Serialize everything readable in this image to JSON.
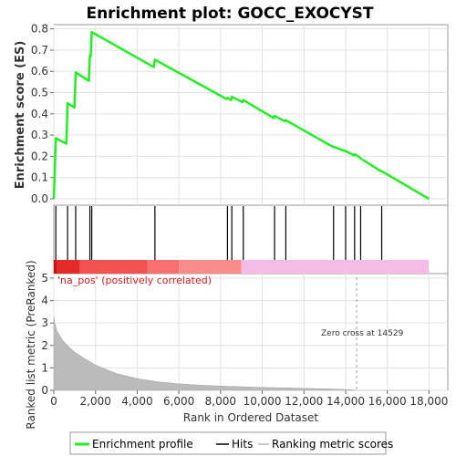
{
  "chart_data": {
    "type": "line",
    "title": "Enrichment plot: GOCC_EXOCYST",
    "xlabel": "Rank in Ordered Dataset",
    "ylabel_top": "Enrichment score (ES)",
    "ylabel_bottom": "Ranked list metric (PreRanked)",
    "xlim": [
      0,
      18900
    ],
    "x_ticks": [
      0,
      2000,
      4000,
      6000,
      8000,
      10000,
      12000,
      14000,
      16000,
      18000
    ],
    "x_tick_labels": [
      "0",
      "2,000",
      "4,000",
      "6,000",
      "8,000",
      "10,000",
      "12,000",
      "14,000",
      "16,000",
      "18,000"
    ],
    "es_ylim": [
      -0.03,
      0.82
    ],
    "es_ticks": [
      0.0,
      0.1,
      0.2,
      0.3,
      0.4,
      0.5,
      0.6,
      0.7,
      0.8
    ],
    "es_tick_labels": [
      "0.0",
      "0.1",
      "0.2",
      "0.3",
      "0.4",
      "0.5",
      "0.6",
      "0.7",
      "0.8"
    ],
    "metric_ylim": [
      0,
      5.2
    ],
    "metric_ticks": [
      0,
      1,
      2,
      3,
      4,
      5
    ],
    "metric_tick_labels": [
      "0",
      "1",
      "2",
      "3",
      "4",
      "5"
    ],
    "max_rank": 17990,
    "hits": [
      96,
      660,
      1050,
      1730,
      1820,
      4850,
      8330,
      8540,
      9090,
      10590,
      11130,
      13420,
      14000,
      14430,
      14720,
      15730
    ],
    "es_profile": [
      [
        0,
        0.0
      ],
      [
        96,
        0.285
      ],
      [
        600,
        0.26
      ],
      [
        660,
        0.45
      ],
      [
        990,
        0.43
      ],
      [
        1050,
        0.595
      ],
      [
        1680,
        0.555
      ],
      [
        1730,
        0.675
      ],
      [
        1770,
        0.67
      ],
      [
        1820,
        0.785
      ],
      [
        4800,
        0.62
      ],
      [
        4850,
        0.655
      ],
      [
        8280,
        0.47
      ],
      [
        8330,
        0.475
      ],
      [
        8500,
        0.465
      ],
      [
        8540,
        0.48
      ],
      [
        9050,
        0.455
      ],
      [
        9090,
        0.465
      ],
      [
        10550,
        0.38
      ],
      [
        10590,
        0.39
      ],
      [
        11090,
        0.365
      ],
      [
        11130,
        0.37
      ],
      [
        13380,
        0.245
      ],
      [
        13420,
        0.245
      ],
      [
        13960,
        0.225
      ],
      [
        14000,
        0.225
      ],
      [
        14390,
        0.205
      ],
      [
        14430,
        0.21
      ],
      [
        14680,
        0.195
      ],
      [
        14720,
        0.19
      ],
      [
        15690,
        0.13
      ],
      [
        15730,
        0.13
      ],
      [
        17990,
        0.0
      ]
    ],
    "metric_curve": [
      [
        0,
        3.3
      ],
      [
        40,
        3.0
      ],
      [
        150,
        2.65
      ],
      [
        400,
        2.25
      ],
      [
        700,
        1.95
      ],
      [
        1000,
        1.7
      ],
      [
        1500,
        1.4
      ],
      [
        2000,
        1.12
      ],
      [
        3000,
        0.75
      ],
      [
        4000,
        0.52
      ],
      [
        5000,
        0.38
      ],
      [
        6000,
        0.29
      ],
      [
        7000,
        0.23
      ],
      [
        8000,
        0.19
      ],
      [
        9000,
        0.16
      ],
      [
        10000,
        0.13
      ],
      [
        11000,
        0.11
      ],
      [
        12000,
        0.09
      ],
      [
        13000,
        0.07
      ],
      [
        14000,
        0.04
      ],
      [
        14529,
        0.0
      ],
      [
        17990,
        0.0
      ]
    ],
    "zero_cross": 14529,
    "zero_cross_label": "Zero cross at 14529",
    "pos_label": "'na_pos' (positively correlated)",
    "colorbar_segments": [
      {
        "start": 0,
        "end": 150,
        "color": "#d01010"
      },
      {
        "start": 150,
        "end": 1250,
        "color": "#e52a2a"
      },
      {
        "start": 1250,
        "end": 4500,
        "color": "#f25252"
      },
      {
        "start": 4500,
        "end": 6000,
        "color": "#f87070"
      },
      {
        "start": 6000,
        "end": 9000,
        "color": "#fb8c8c"
      },
      {
        "start": 9000,
        "end": 17990,
        "color": "#f5bde6"
      }
    ],
    "colors": {
      "es_line": "#22ee22",
      "hits": "#000000",
      "metric_fill": "#bbbbbb",
      "zero_line": "#a0a0a0",
      "frame": "#999999"
    },
    "legend": {
      "profile_label": "Enrichment profile",
      "hits_label": "Hits",
      "metric_label": "Ranking metric scores"
    }
  }
}
